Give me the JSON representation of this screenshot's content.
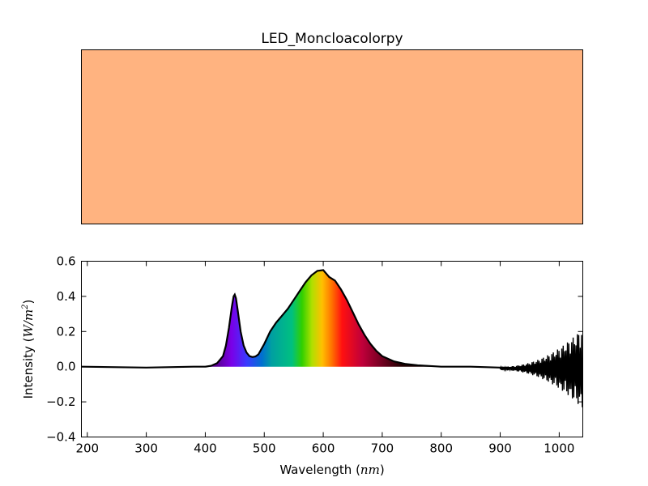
{
  "figure": {
    "title": "LED_Moncloacolorpy",
    "swatch_color": "#FFB380"
  },
  "chart_data": {
    "type": "area",
    "title": "LED_Moncloacolorpy",
    "xlabel_prefix": "Wavelength (",
    "xlabel_math": "nm",
    "xlabel_suffix": ")",
    "ylabel_prefix": "Intensity (",
    "ylabel_math": "W/m",
    "ylabel_sup": "2",
    "ylabel_suffix": ")",
    "xlim": [
      190,
      1040
    ],
    "ylim": [
      -0.4,
      0.6
    ],
    "xticks": [
      200,
      300,
      400,
      500,
      600,
      700,
      800,
      900,
      1000
    ],
    "xtick_labels": [
      "200",
      "300",
      "400",
      "500",
      "600",
      "700",
      "800",
      "900",
      "1000"
    ],
    "yticks": [
      -0.4,
      -0.2,
      0.0,
      0.2,
      0.4,
      0.6
    ],
    "ytick_labels": [
      "−0.4",
      "−0.2",
      "0.0",
      "0.2",
      "0.4",
      "0.6"
    ],
    "grid": false,
    "fill": "visible-spectrum gradient under curve",
    "series": [
      {
        "line_color": "#000000",
        "x": [
          190,
          300,
          380,
          400,
          410,
          420,
          430,
          435,
          440,
          445,
          448,
          450,
          452,
          455,
          460,
          465,
          470,
          475,
          480,
          485,
          490,
          500,
          510,
          520,
          530,
          540,
          550,
          560,
          570,
          580,
          590,
          600,
          605,
          610,
          620,
          630,
          640,
          650,
          660,
          670,
          680,
          690,
          700,
          720,
          740,
          760,
          780,
          800,
          850,
          900,
          950,
          1000,
          1040
        ],
        "y": [
          0.0,
          -0.005,
          0.0,
          0.0,
          0.005,
          0.02,
          0.06,
          0.12,
          0.22,
          0.34,
          0.4,
          0.41,
          0.39,
          0.32,
          0.2,
          0.12,
          0.08,
          0.06,
          0.055,
          0.058,
          0.07,
          0.13,
          0.2,
          0.25,
          0.29,
          0.33,
          0.38,
          0.43,
          0.48,
          0.52,
          0.545,
          0.55,
          0.53,
          0.51,
          0.49,
          0.44,
          0.38,
          0.31,
          0.24,
          0.18,
          0.13,
          0.09,
          0.06,
          0.03,
          0.015,
          0.008,
          0.004,
          0.0,
          0.0,
          -0.005,
          -0.01,
          -0.02,
          -0.03
        ]
      }
    ]
  }
}
